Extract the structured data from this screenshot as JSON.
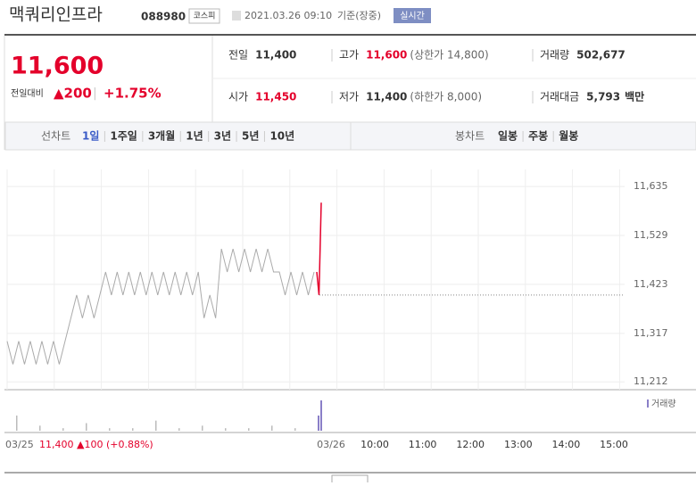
{
  "header": {
    "name": "맥쿼리인프라",
    "code": "088980",
    "market": "코스피",
    "datetime": "2021.03.26 09:10",
    "basis": "기준(장중)",
    "realtime": "실시간"
  },
  "quote": {
    "price": "11,600",
    "change_label": "전일대비",
    "change": "▲200",
    "change_rate": "+1.75%",
    "stats": [
      {
        "label": "전일",
        "value": "11,400"
      },
      {
        "label": "고가",
        "value": "11,600",
        "note": "(상한가 14,800)"
      },
      {
        "label": "거래량",
        "value": "502,677"
      },
      {
        "label": "시가",
        "value": "11,450"
      },
      {
        "label": "저가",
        "value": "11,400",
        "note": "(하한가 8,000)"
      },
      {
        "label": "거래대금",
        "value": "5,793",
        "unit": "백만"
      }
    ]
  },
  "tabs": {
    "line_label": "선차트",
    "line": [
      "1일",
      "1주일",
      "3개월",
      "1년",
      "3년",
      "5년",
      "10년"
    ],
    "candle_label": "봉차트",
    "candle": [
      "일봉",
      "주봉",
      "월봉"
    ]
  },
  "chart": {
    "ylim": [
      11195,
      11672
    ],
    "yticks": [
      {
        "value": 11635,
        "label": "11,635"
      },
      {
        "value": 11529,
        "label": "11,529"
      },
      {
        "value": 11423,
        "label": "11,423"
      },
      {
        "value": 11317,
        "label": "11,317"
      },
      {
        "value": 11212,
        "label": "11,212"
      }
    ],
    "prev_close": 11400,
    "prev_prices": [
      11300,
      11250,
      11300,
      11250,
      11300,
      11250,
      11300,
      11250,
      11300,
      11250,
      11300,
      11350,
      11400,
      11350,
      11400,
      11350,
      11400,
      11450,
      11400,
      11450,
      11400,
      11450,
      11400,
      11450,
      11400,
      11450,
      11400,
      11450,
      11400,
      11450,
      11400,
      11450,
      11400,
      11450,
      11350,
      11400,
      11350,
      11500,
      11450,
      11500,
      11450,
      11500,
      11450,
      11500,
      11450,
      11500,
      11450,
      11450,
      11400,
      11450,
      11400,
      11450,
      11400,
      11450
    ],
    "today_prices": [
      11450,
      11400,
      11600
    ],
    "volume_legend": "거래량",
    "prev_volume": [
      6,
      2,
      1,
      3,
      1,
      1,
      4,
      1,
      2,
      1,
      1,
      2,
      1
    ],
    "today_volume": [
      6,
      12
    ],
    "prev_date": "03/25",
    "prev_summary": "11,400 ▲100 (+0.88%)",
    "today_date": "03/26",
    "hours": [
      "10:00",
      "11:00",
      "12:00",
      "13:00",
      "14:00",
      "15:00"
    ]
  }
}
